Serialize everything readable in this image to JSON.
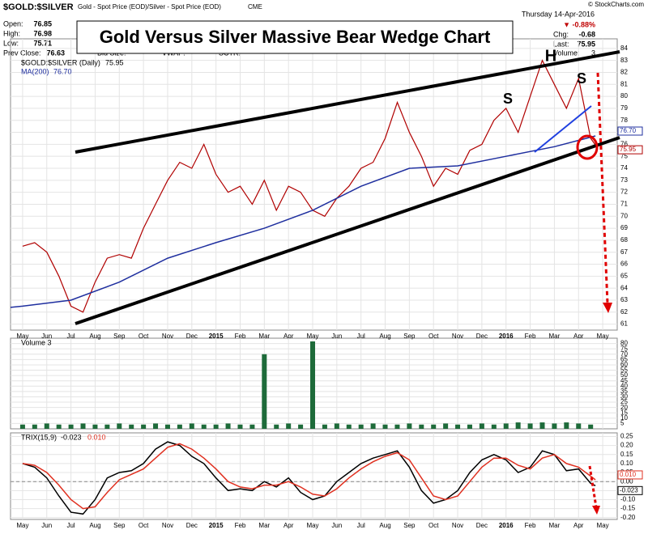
{
  "header": {
    "symbol": "$GOLD:$SILVER",
    "description": "Gold - Spot Price (EOD)/Silver - Spot Price (EOD)",
    "exchange": "CME",
    "credit": "© StockCharts.com",
    "date": "Thursday 14-Apr-2016",
    "open_label": "Open:",
    "open": "76.85",
    "high_label": "High:",
    "high": "76.98",
    "low_label": "Low:",
    "low": "75.71",
    "prev_label": "Prev Close:",
    "prev": "76.63",
    "bid": "Bid Size:",
    "ask": "Ask Size:",
    "vwap": "VWAP:",
    "sctr": "SCTR:",
    "pct": "▼ -0.88%",
    "chg_label": "Chg:",
    "chg": "-0.68",
    "last_label": "Last:",
    "last": "75.95",
    "volume_label": "Volume:",
    "volume": "3"
  },
  "chart_data": [
    {
      "type": "line",
      "title": "Gold Versus Silver Massive Bear Wedge Chart",
      "annotations": [
        "H",
        "S",
        "S"
      ],
      "xlim": [
        -0.5,
        24.6
      ],
      "ylim": [
        60.5,
        84.8
      ],
      "yticks": [
        61,
        62,
        63,
        64,
        65,
        66,
        67,
        68,
        69,
        70,
        71,
        72,
        73,
        74,
        75,
        76,
        77,
        78,
        79,
        80,
        81,
        82,
        83,
        84
      ],
      "grid": true,
      "xticks": [
        {
          "value": 0,
          "label": "May"
        },
        {
          "value": 1,
          "label": "Jun"
        },
        {
          "value": 2,
          "label": "Jul"
        },
        {
          "value": 3,
          "label": "Aug"
        },
        {
          "value": 4,
          "label": "Sep"
        },
        {
          "value": 5,
          "label": "Oct"
        },
        {
          "value": 6,
          "label": "Nov"
        },
        {
          "value": 7,
          "label": "Dec"
        },
        {
          "value": 8,
          "label": "2015"
        },
        {
          "value": 9,
          "label": "Feb"
        },
        {
          "value": 10,
          "label": "Mar"
        },
        {
          "value": 11,
          "label": "Apr"
        },
        {
          "value": 12,
          "label": "May"
        },
        {
          "value": 13,
          "label": "Jun"
        },
        {
          "value": 14,
          "label": "Jul"
        },
        {
          "value": 15,
          "label": "Aug"
        },
        {
          "value": 16,
          "label": "Sep"
        },
        {
          "value": 17,
          "label": "Oct"
        },
        {
          "value": 18,
          "label": "Nov"
        },
        {
          "value": 19,
          "label": "Dec"
        },
        {
          "value": 20,
          "label": "2016"
        },
        {
          "value": 21,
          "label": "Feb"
        },
        {
          "value": 22,
          "label": "Mar"
        },
        {
          "value": 23,
          "label": "Apr"
        },
        {
          "value": 24,
          "label": "May"
        }
      ],
      "series": [
        {
          "name": "$GOLD:$SILVER (Daily)",
          "color": "#b00000",
          "last_label": "75.95",
          "x": [
            0,
            0.5,
            1,
            1.5,
            2,
            2.5,
            3,
            3.5,
            4,
            4.5,
            5,
            5.5,
            6,
            6.5,
            7,
            7.5,
            8,
            8.5,
            9,
            9.5,
            10,
            10.5,
            11,
            11.5,
            12,
            12.5,
            13,
            13.5,
            14,
            14.5,
            15,
            15.5,
            16,
            16.5,
            17,
            17.5,
            18,
            18.5,
            19,
            19.5,
            20,
            20.5,
            21,
            21.5,
            22,
            22.5,
            23,
            23.5,
            23.7
          ],
          "values": [
            67.5,
            67.8,
            67,
            65,
            62.5,
            62,
            64.5,
            66.5,
            66.8,
            66.5,
            69,
            71,
            73,
            74.5,
            74,
            76,
            73.5,
            72,
            72.5,
            71,
            73,
            70.5,
            72.5,
            72,
            70.5,
            70,
            71.5,
            72.5,
            74,
            74.5,
            76.5,
            79.5,
            77,
            75,
            72.5,
            74,
            73.5,
            75.5,
            76,
            78,
            79,
            77,
            80,
            83,
            81,
            79,
            81.5,
            76.5,
            75.95
          ]
        },
        {
          "name": "MA(200)",
          "color": "#1f2f9f",
          "last_label": "76.70",
          "x": [
            -0.5,
            0,
            2,
            4,
            6,
            8,
            10,
            12,
            14,
            16,
            18,
            20,
            22,
            23.7
          ],
          "values": [
            62.4,
            62.5,
            63,
            64.5,
            66.5,
            67.8,
            69,
            70.5,
            72.5,
            74,
            74.2,
            75,
            75.8,
            76.7
          ]
        }
      ]
    },
    {
      "type": "bar",
      "title": "Volume 3",
      "color": "#1e6b3a",
      "xlim": [
        -0.5,
        24.6
      ],
      "ylim": [
        0,
        85
      ],
      "yticks": [
        5,
        10,
        15,
        20,
        25,
        30,
        35,
        40,
        45,
        50,
        55,
        60,
        65,
        70,
        75,
        80
      ],
      "x": [
        0,
        0.5,
        1,
        1.5,
        2,
        2.5,
        3,
        3.5,
        4,
        4.5,
        5,
        5.5,
        6,
        6.5,
        7,
        7.5,
        8,
        8.5,
        9,
        9.5,
        10,
        10.5,
        11,
        11.5,
        12,
        12.5,
        13,
        13.5,
        14,
        14.5,
        15,
        15.5,
        16,
        16.5,
        17,
        17.5,
        18,
        18.5,
        19,
        19.5,
        20,
        20.5,
        21,
        21.5,
        22,
        22.5,
        23,
        23.5
      ],
      "values": [
        4,
        4,
        5,
        4,
        4,
        5,
        4,
        4,
        5,
        4,
        4,
        5,
        4,
        4,
        5,
        4,
        4,
        5,
        4,
        4,
        70,
        4,
        5,
        4,
        82,
        4,
        5,
        4,
        4,
        5,
        4,
        4,
        5,
        4,
        4,
        5,
        4,
        4,
        5,
        4,
        5,
        6,
        5,
        6,
        5,
        6,
        5,
        4
      ]
    },
    {
      "type": "line",
      "title": "TRIX(15,9)",
      "xlim": [
        -0.5,
        24.6
      ],
      "ylim": [
        -0.21,
        0.27
      ],
      "yticks": [
        {
          "value": -0.2,
          "label": "-0.20"
        },
        -0.15,
        {
          "value": -0.1,
          "label": "-0.10"
        },
        -0.05,
        {
          "value": 0,
          "label": "0.00"
        },
        0.05,
        {
          "value": 0.1,
          "label": "0.10"
        },
        0.15,
        {
          "value": 0.2,
          "label": "0.20"
        },
        0.25
      ],
      "series": [
        {
          "name": "TRIX",
          "color": "#000000",
          "last_label": "-0.023",
          "x": [
            0,
            0.5,
            1,
            1.5,
            2,
            2.5,
            3,
            3.5,
            4,
            4.5,
            5,
            5.5,
            6,
            6.5,
            7,
            7.5,
            8,
            8.5,
            9,
            9.5,
            10,
            10.5,
            11,
            11.5,
            12,
            12.5,
            13,
            13.5,
            14,
            14.5,
            15,
            15.5,
            16,
            16.5,
            17,
            17.5,
            18,
            18.5,
            19,
            19.5,
            20,
            20.5,
            21,
            21.5,
            22,
            22.5,
            23,
            23.5,
            23.7
          ],
          "values": [
            0.1,
            0.08,
            0.02,
            -0.08,
            -0.17,
            -0.18,
            -0.1,
            0.02,
            0.05,
            0.06,
            0.1,
            0.18,
            0.22,
            0.2,
            0.14,
            0.1,
            0.02,
            -0.05,
            -0.04,
            -0.05,
            0,
            -0.03,
            0.02,
            -0.06,
            -0.1,
            -0.08,
            0,
            0.05,
            0.1,
            0.13,
            0.15,
            0.17,
            0.08,
            -0.05,
            -0.12,
            -0.1,
            -0.05,
            0.05,
            0.12,
            0.15,
            0.12,
            0.05,
            0.08,
            0.17,
            0.15,
            0.06,
            0.07,
            -0.01,
            -0.023
          ]
        },
        {
          "name": "Signal",
          "color": "#e03020",
          "last_label": "0.010",
          "x": [
            0,
            0.5,
            1,
            1.5,
            2,
            2.5,
            3,
            3.5,
            4,
            4.5,
            5,
            5.5,
            6,
            6.5,
            7,
            7.5,
            8,
            8.5,
            9,
            9.5,
            10,
            10.5,
            11,
            11.5,
            12,
            12.5,
            13,
            13.5,
            14,
            14.5,
            15,
            15.5,
            16,
            16.5,
            17,
            17.5,
            18,
            18.5,
            19,
            19.5,
            20,
            20.5,
            21,
            21.5,
            22,
            22.5,
            23,
            23.5,
            23.7
          ],
          "values": [
            0.1,
            0.09,
            0.05,
            -0.02,
            -0.1,
            -0.15,
            -0.14,
            -0.06,
            0.01,
            0.04,
            0.07,
            0.13,
            0.19,
            0.21,
            0.18,
            0.13,
            0.07,
            0,
            -0.03,
            -0.04,
            -0.02,
            -0.02,
            0,
            -0.03,
            -0.07,
            -0.08,
            -0.04,
            0.02,
            0.07,
            0.11,
            0.14,
            0.16,
            0.12,
            0.02,
            -0.08,
            -0.1,
            -0.08,
            0,
            0.08,
            0.13,
            0.13,
            0.09,
            0.07,
            0.13,
            0.15,
            0.1,
            0.08,
            0.03,
            0.01
          ]
        }
      ]
    }
  ]
}
